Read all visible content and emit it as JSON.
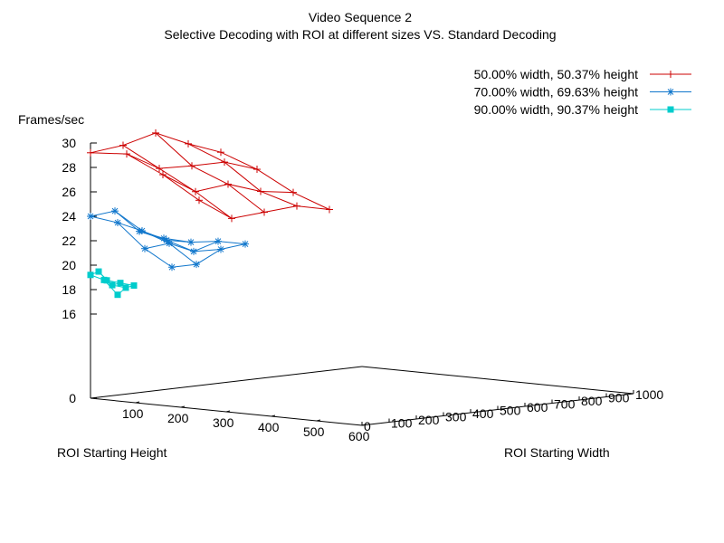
{
  "chart_data": {
    "type": "line",
    "title": "Video Sequence 2",
    "subtitle": "Selective Decoding with ROI at different sizes VS. Standard Decoding",
    "zlabel": "Frames/sec",
    "ylabel": "ROI Starting Height",
    "xlabel": "ROI Starting Width",
    "z_ticks": [
      "0",
      "16",
      "18",
      "20",
      "22",
      "24",
      "26",
      "28",
      "30"
    ],
    "height_ticks": [
      "100",
      "200",
      "300",
      "400",
      "500",
      "600"
    ],
    "width_ticks": [
      "0",
      "100",
      "200",
      "300",
      "400",
      "500",
      "600",
      "700",
      "800",
      "900",
      "1000"
    ],
    "z_range": [
      0,
      30
    ],
    "height_range": [
      0,
      600
    ],
    "width_range": [
      0,
      1000
    ],
    "legend_position": "top-right",
    "series": [
      {
        "name": "50.00% width, 50.37% height",
        "color": "#cc0000",
        "marker": "plus",
        "grid_widths": [
          0,
          120,
          240,
          360,
          480
        ],
        "grid_heights": [
          0,
          80,
          160,
          240
        ],
        "fps": [
          [
            29.2,
            29.5,
            30.2,
            29.0,
            28.0
          ],
          [
            29.4,
            27.9,
            27.8,
            27.8,
            26.9
          ],
          [
            28.0,
            26.3,
            26.6,
            25.7,
            25.3
          ],
          [
            26.2,
            24.4,
            24.6,
            24.8,
            24.2
          ]
        ]
      },
      {
        "name": "70.00% width, 69.63% height",
        "color": "#1177cc",
        "marker": "star",
        "grid_widths": [
          0,
          90,
          180,
          270
        ],
        "grid_heights": [
          0,
          60,
          120,
          180
        ],
        "fps": [
          [
            24.0,
            24.2,
            22.3,
            21.5
          ],
          [
            23.7,
            22.8,
            21.8,
            21.4
          ],
          [
            21.8,
            22.0,
            21.1,
            21.7
          ],
          [
            20.5,
            20.5,
            21.5,
            21.7
          ]
        ]
      },
      {
        "name": "90.00% width, 90.37% height",
        "color": "#00cccc",
        "marker": "square",
        "grid_widths": [
          0,
          30,
          60
        ],
        "grid_heights": [
          0,
          30,
          60
        ],
        "fps": [
          [
            19.2,
            19.4,
            18.6
          ],
          [
            18.9,
            18.4,
            18.5
          ],
          [
            17.8,
            18.3,
            18.4
          ]
        ]
      }
    ]
  }
}
